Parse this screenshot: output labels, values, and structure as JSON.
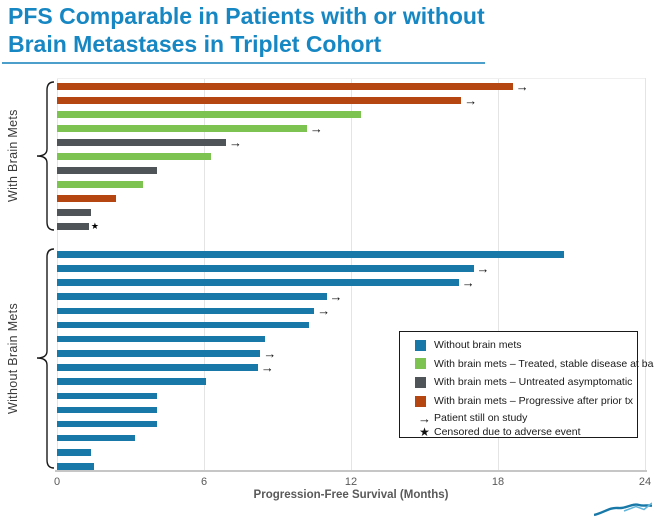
{
  "title": {
    "line1": "PFS Comparable in Patients with or without",
    "line2": "Brain Metastases in Triplet Cohort"
  },
  "chart_data": {
    "type": "bar",
    "orientation": "horizontal",
    "title": "PFS Comparable in Patients with or without Brain Metastases in Triplet Cohort",
    "xlabel": "Progression-Free Survival (Months)",
    "xlim": [
      0,
      24
    ],
    "xticks": [
      0,
      6,
      12,
      18,
      24
    ],
    "grid": "vertical-light",
    "colors": {
      "without": "#1879A8",
      "treated": "#7CC351",
      "untreated": "#4E5457",
      "progressive": "#B54511"
    },
    "groups": [
      {
        "label": "With Brain Mets",
        "bars": [
          {
            "months": 18.6,
            "category": "progressive",
            "marker": "arrow"
          },
          {
            "months": 16.5,
            "category": "progressive",
            "marker": "arrow"
          },
          {
            "months": 12.4,
            "category": "treated",
            "marker": null
          },
          {
            "months": 10.2,
            "category": "treated",
            "marker": "arrow"
          },
          {
            "months": 6.9,
            "category": "untreated",
            "marker": "arrow"
          },
          {
            "months": 6.3,
            "category": "treated",
            "marker": null
          },
          {
            "months": 4.1,
            "category": "untreated",
            "marker": null
          },
          {
            "months": 3.5,
            "category": "treated",
            "marker": null
          },
          {
            "months": 2.4,
            "category": "progressive",
            "marker": null
          },
          {
            "months": 1.4,
            "category": "untreated",
            "marker": null
          },
          {
            "months": 1.3,
            "category": "untreated",
            "marker": "star"
          }
        ]
      },
      {
        "label": "Without Brain Mets",
        "bars": [
          {
            "months": 20.7,
            "category": "without",
            "marker": null
          },
          {
            "months": 17.0,
            "category": "without",
            "marker": "arrow"
          },
          {
            "months": 16.4,
            "category": "without",
            "marker": "arrow"
          },
          {
            "months": 11.0,
            "category": "without",
            "marker": "arrow"
          },
          {
            "months": 10.5,
            "category": "without",
            "marker": "arrow"
          },
          {
            "months": 10.3,
            "category": "without",
            "marker": null
          },
          {
            "months": 8.5,
            "category": "without",
            "marker": null
          },
          {
            "months": 8.3,
            "category": "without",
            "marker": "arrow"
          },
          {
            "months": 8.2,
            "category": "without",
            "marker": "arrow"
          },
          {
            "months": 6.1,
            "category": "without",
            "marker": null
          },
          {
            "months": 4.1,
            "category": "without",
            "marker": null
          },
          {
            "months": 4.1,
            "category": "without",
            "marker": null
          },
          {
            "months": 4.1,
            "category": "without",
            "marker": null
          },
          {
            "months": 3.2,
            "category": "without",
            "marker": null
          },
          {
            "months": 1.4,
            "category": "without",
            "marker": null
          },
          {
            "months": 1.5,
            "category": "without",
            "marker": null
          }
        ]
      }
    ],
    "legend": {
      "position": "bottom-right",
      "items": [
        {
          "type": "swatch",
          "color": "#1879A8",
          "label": "Without brain mets"
        },
        {
          "type": "swatch",
          "color": "#7CC351",
          "label": "With brain mets – Treated, stable disease at baseline"
        },
        {
          "type": "swatch",
          "color": "#4E5457",
          "label": "With brain mets – Untreated asymptomatic"
        },
        {
          "type": "swatch",
          "color": "#B54511",
          "label": "With brain mets – Progressive after prior tx"
        },
        {
          "type": "symbol",
          "symbol": "→",
          "label": "Patient still on study"
        },
        {
          "type": "symbol",
          "symbol": "★",
          "label": "Censored due to adverse event"
        }
      ]
    }
  },
  "accent_colors": {
    "title_blue": "#1787C3",
    "underline_blue": "#4D9FCB",
    "logo_blue": "#1879A8"
  }
}
